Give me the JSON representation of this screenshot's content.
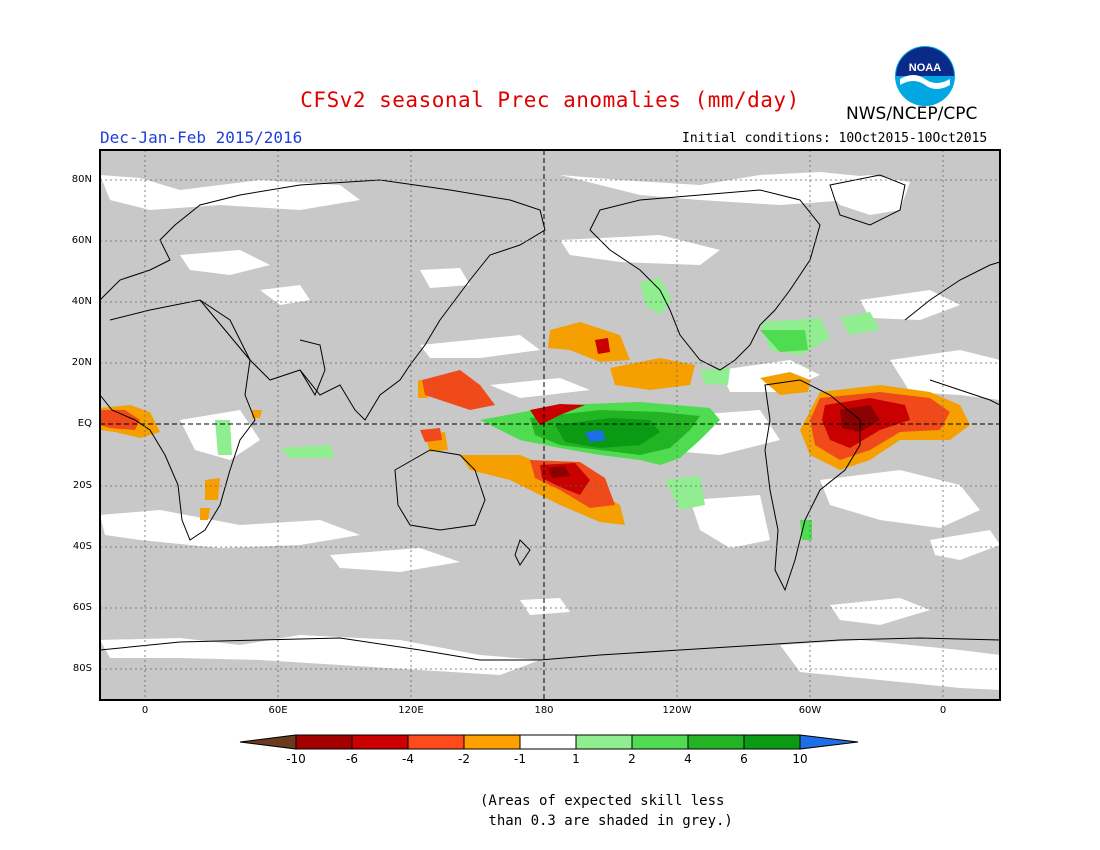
{
  "header": {
    "title": "CFSv2 seasonal Prec anomalies (mm/day)",
    "agency": "NWS/NCEP/CPC",
    "season": "Dec-Jan-Feb 2015/2016",
    "initial_conditions": "Initial conditions: 10Oct2015-10Oct2015"
  },
  "logo": {
    "text": "NOAA",
    "icon": "noaa-logo-icon"
  },
  "map": {
    "lat_labels": [
      "80N",
      "60N",
      "40N",
      "20N",
      "EQ",
      "20S",
      "40S",
      "60S",
      "80S"
    ],
    "lon_labels": [
      "0",
      "60E",
      "120E",
      "180",
      "120W",
      "60W",
      "0"
    ],
    "colors": {
      "no_skill": "#c8c8c8",
      "dry_extreme": "#8b0000",
      "dry_strong": "#c80000",
      "dry_moderate": "#f04a1a",
      "dry_weak": "#f5a000",
      "neutral": "#ffffff",
      "wet_weak": "#90ee90",
      "wet_moderate": "#50dc50",
      "wet_strong": "#22b422",
      "wet_extreme": "#0a9a14",
      "wet_max": "#1e6ee6",
      "title_red": "#e00000",
      "season_blue": "#1f3fd6"
    }
  },
  "legend": {
    "labels": [
      "-10",
      "-6",
      "-4",
      "-2",
      "-1",
      "1",
      "2",
      "4",
      "6",
      "10"
    ],
    "colors": [
      "#6b3a1e",
      "#a50000",
      "#cc0000",
      "#ff4a1a",
      "#ffa000",
      "#ffffff",
      "#90ee90",
      "#50dc50",
      "#22b422",
      "#0a9a14",
      "#1e6ee6"
    ]
  },
  "note": {
    "line1": "(Areas of expected skill less",
    "line2": " than 0.3 are shaded in grey.)"
  }
}
